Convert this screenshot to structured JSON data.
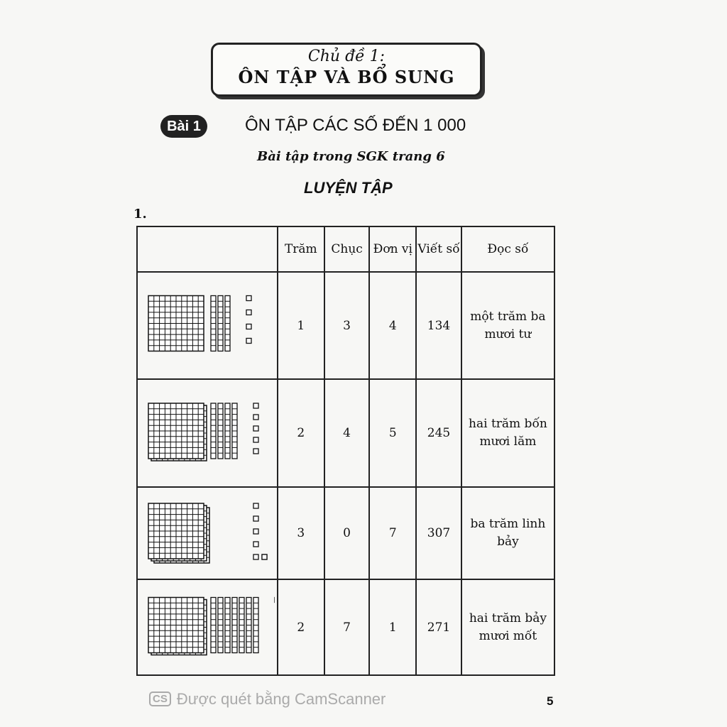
{
  "topic": {
    "label": "Chủ đề 1:",
    "title": "ÔN TẬP VÀ BỔ SUNG"
  },
  "lesson": {
    "badge": "Bài 1",
    "title": "ÔN TẬP CÁC SỐ ĐẾN 1 000"
  },
  "subtitle": "Bài tập trong SGK trang 6",
  "section": "LUYỆN TẬP",
  "exercise_number": "1.",
  "table": {
    "headers": [
      "",
      "Trăm",
      "Chục",
      "Đơn vị",
      "Viết số",
      "Đọc số"
    ],
    "rows": [
      {
        "hundreds": "1",
        "tens": "3",
        "ones": "4",
        "number": "134",
        "reading": "một trăm ba mươi tư"
      },
      {
        "hundreds": "2",
        "tens": "4",
        "ones": "5",
        "number": "245",
        "reading": "hai trăm bốn mươi lăm"
      },
      {
        "hundreds": "3",
        "tens": "0",
        "ones": "7",
        "number": "307",
        "reading": "ba trăm linh bảy"
      },
      {
        "hundreds": "2",
        "tens": "7",
        "ones": "1",
        "number": "271",
        "reading": "hai trăm bảy mươi mốt"
      }
    ]
  },
  "footer": {
    "watermark_logo": "CS",
    "watermark": "Được quét bằng CamScanner",
    "page_number": "5"
  }
}
